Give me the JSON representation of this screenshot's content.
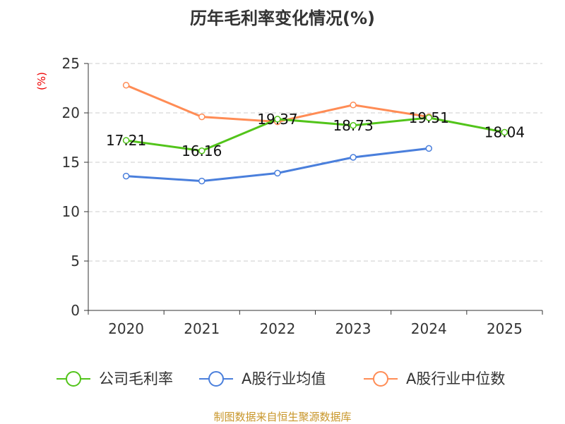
{
  "chart_data": {
    "type": "line",
    "title": "历年毛利率变化情况(%)",
    "ylabel": "(%)",
    "categories": [
      "2020",
      "2021",
      "2022",
      "2023",
      "2024",
      "2025"
    ],
    "ylim": [
      0,
      25
    ],
    "yticks": [
      0,
      5,
      10,
      15,
      20,
      25
    ],
    "grid": true,
    "legend_position": "bottom",
    "series": [
      {
        "name": "公司毛利率",
        "color": "#52c41a",
        "values": [
          17.21,
          16.16,
          19.37,
          18.73,
          19.51,
          18.04
        ],
        "labels": [
          "17.21",
          "16.16",
          "19.37",
          "18.73",
          "19.51",
          "18.04"
        ]
      },
      {
        "name": "A股行业均值",
        "color": "#4a7fdc",
        "values": [
          13.6,
          13.1,
          13.9,
          15.5,
          16.4,
          null
        ]
      },
      {
        "name": "A股行业中位数",
        "color": "#ff8c55",
        "values": [
          22.8,
          19.6,
          19.1,
          20.8,
          19.6,
          null
        ]
      }
    ]
  },
  "source": "制图数据来自恒生聚源数据库"
}
